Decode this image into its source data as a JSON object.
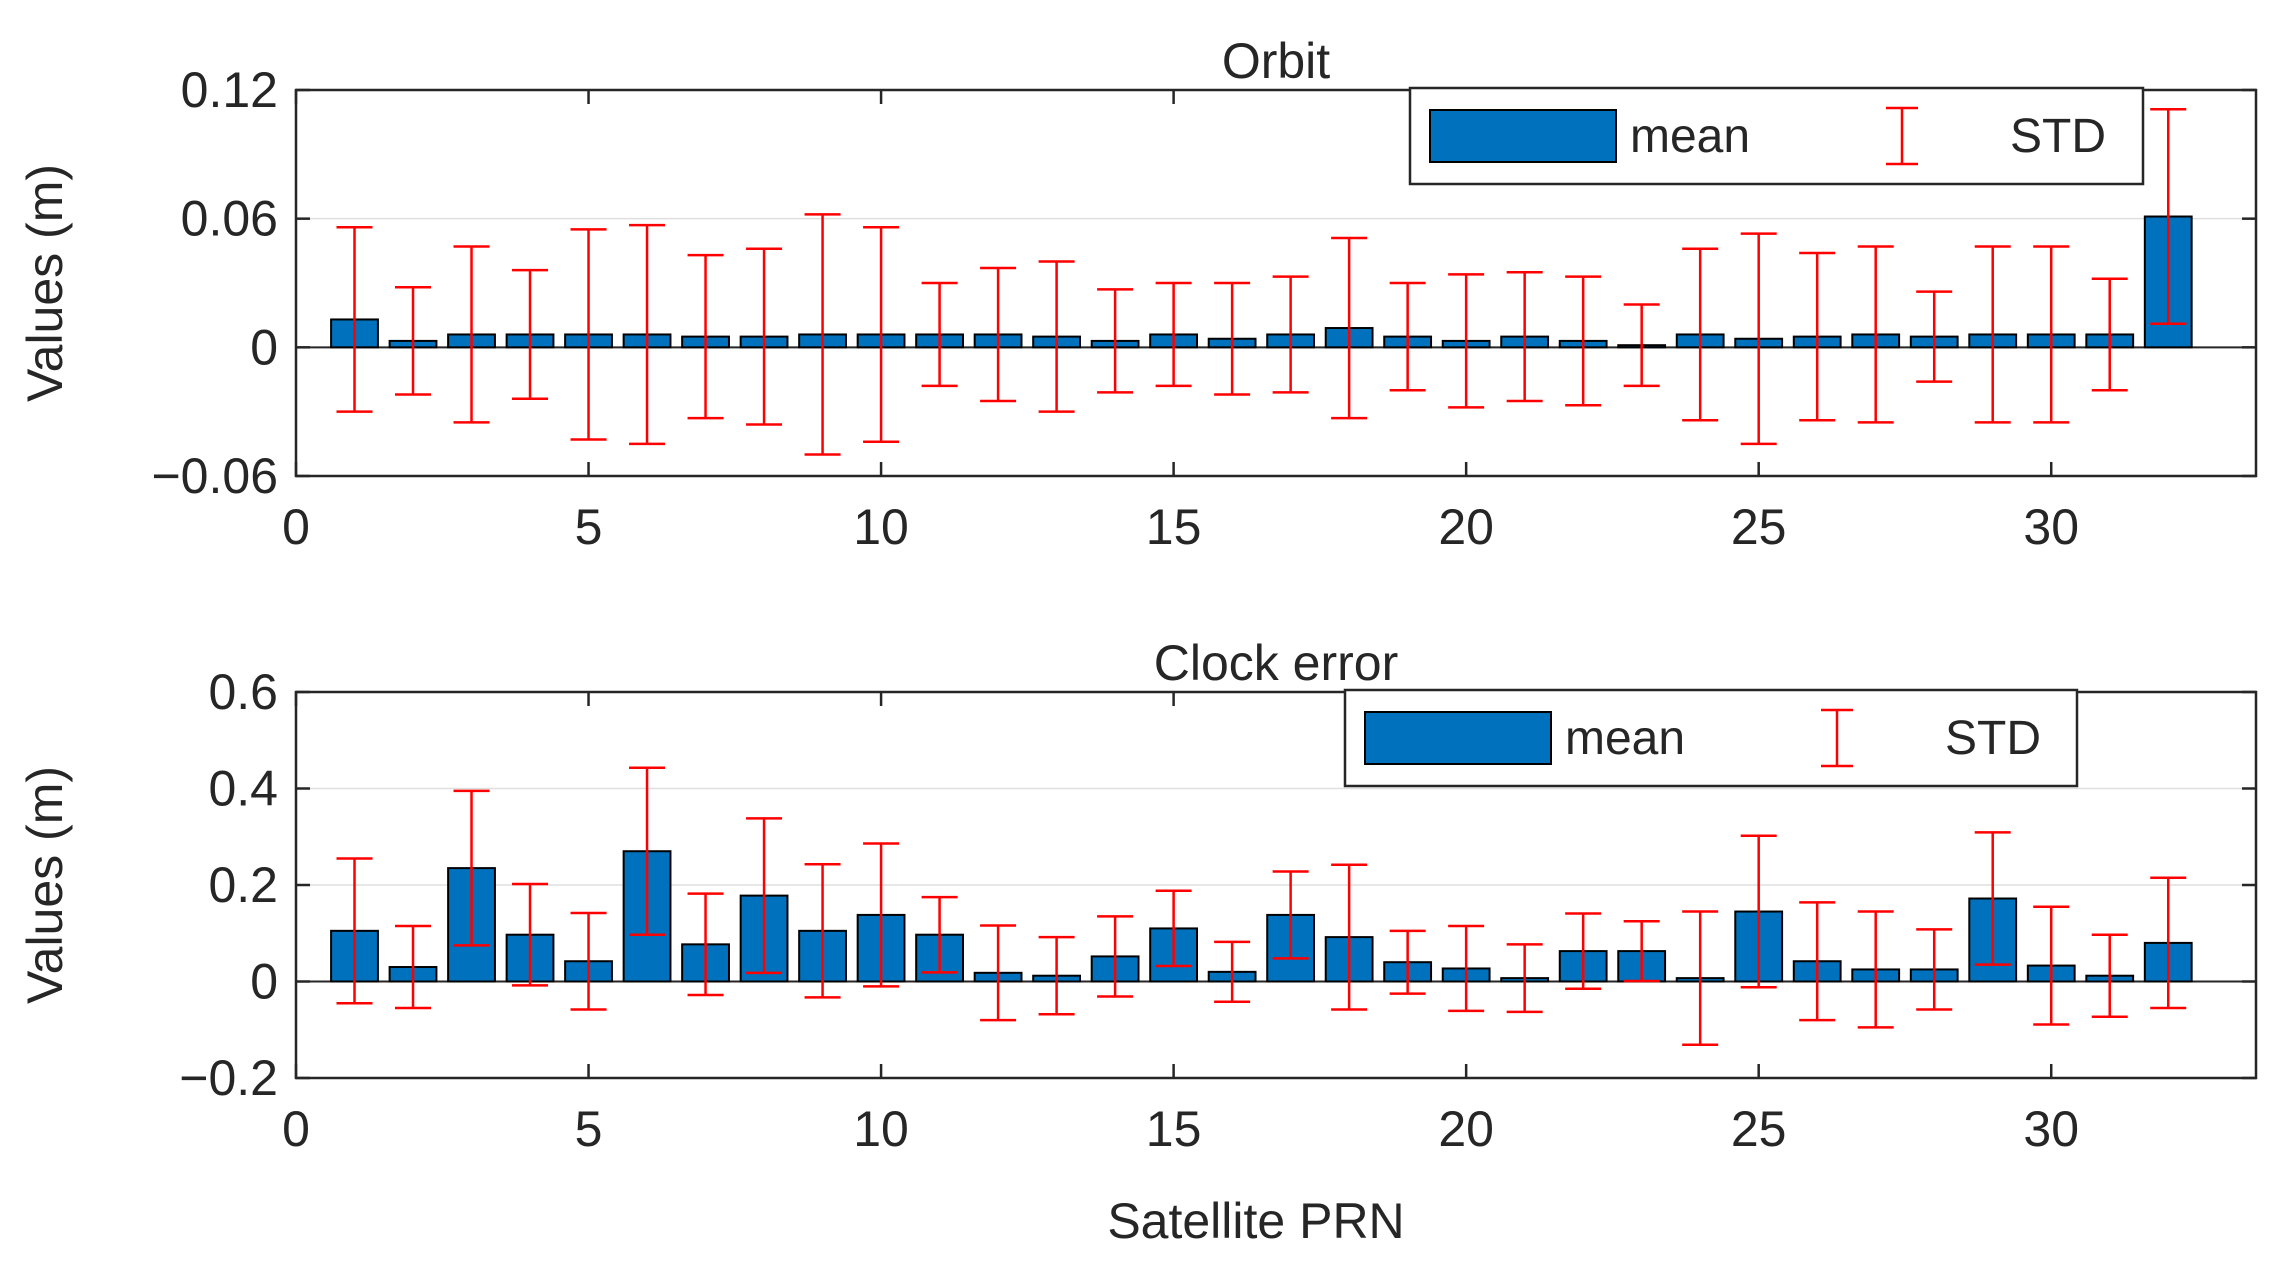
{
  "colors": {
    "bar_fill": "#0072BD",
    "bar_edge": "#000000",
    "errorbar": "#FF0000",
    "axis": "#262626",
    "grid": "#DFDFDF",
    "background": "#FFFFFF"
  },
  "chart_data": [
    {
      "type": "bar",
      "title": "Orbit",
      "xlabel": "",
      "ylabel": "Values (m)",
      "xlim": [
        0,
        33.5
      ],
      "ylim": [
        -0.06,
        0.12
      ],
      "xticks": [
        0,
        5,
        10,
        15,
        20,
        25,
        30
      ],
      "xtick_labels": [
        "0",
        "5",
        "10",
        "15",
        "20",
        "25",
        "30"
      ],
      "yticks": [
        -0.06,
        0,
        0.06,
        0.12
      ],
      "ytick_labels": [
        "−0.06",
        "0",
        "0.06",
        "0.12"
      ],
      "grid": "y",
      "legend": {
        "location": "top-right",
        "mean_label": "mean",
        "std_label": "STD"
      },
      "x": [
        1,
        2,
        3,
        4,
        5,
        6,
        7,
        8,
        9,
        10,
        11,
        12,
        13,
        14,
        15,
        16,
        17,
        18,
        19,
        20,
        21,
        22,
        23,
        24,
        25,
        26,
        27,
        28,
        29,
        30,
        31,
        32
      ],
      "series": [
        {
          "name": "mean",
          "values": [
            0.013,
            0.003,
            0.006,
            0.006,
            0.006,
            0.006,
            0.005,
            0.005,
            0.006,
            0.006,
            0.006,
            0.006,
            0.005,
            0.003,
            0.006,
            0.004,
            0.006,
            0.009,
            0.005,
            0.003,
            0.005,
            0.003,
            0.001,
            0.006,
            0.004,
            0.005,
            0.006,
            0.005,
            0.006,
            0.006,
            0.006,
            0.061
          ]
        },
        {
          "name": "STD",
          "values": [
            0.043,
            0.025,
            0.041,
            0.03,
            0.049,
            0.051,
            0.038,
            0.041,
            0.056,
            0.05,
            0.024,
            0.031,
            0.035,
            0.024,
            0.024,
            0.026,
            0.027,
            0.042,
            0.025,
            0.031,
            0.03,
            0.03,
            0.019,
            0.04,
            0.049,
            0.039,
            0.041,
            0.021,
            0.041,
            0.041,
            0.026,
            0.05
          ]
        }
      ]
    },
    {
      "type": "bar",
      "title": "Clock error",
      "xlabel": "Satellite PRN",
      "ylabel": "Values (m)",
      "xlim": [
        0,
        33.5
      ],
      "ylim": [
        -0.2,
        0.6
      ],
      "xticks": [
        0,
        5,
        10,
        15,
        20,
        25,
        30
      ],
      "xtick_labels": [
        "0",
        "5",
        "10",
        "15",
        "20",
        "25",
        "30"
      ],
      "yticks": [
        -0.2,
        0,
        0.2,
        0.4,
        0.6
      ],
      "ytick_labels": [
        "−0.2",
        "0",
        "0.2",
        "0.4",
        "0.6"
      ],
      "grid": "y",
      "legend": {
        "location": "top-right",
        "mean_label": "mean",
        "std_label": "STD"
      },
      "x": [
        1,
        2,
        3,
        4,
        5,
        6,
        7,
        8,
        9,
        10,
        11,
        12,
        13,
        14,
        15,
        16,
        17,
        18,
        19,
        20,
        21,
        22,
        23,
        24,
        25,
        26,
        27,
        28,
        29,
        30,
        31,
        32
      ],
      "series": [
        {
          "name": "mean",
          "values": [
            0.105,
            0.03,
            0.235,
            0.097,
            0.042,
            0.27,
            0.077,
            0.178,
            0.105,
            0.138,
            0.097,
            0.018,
            0.012,
            0.052,
            0.11,
            0.02,
            0.138,
            0.092,
            0.04,
            0.027,
            0.007,
            0.063,
            0.063,
            0.007,
            0.145,
            0.042,
            0.025,
            0.025,
            0.172,
            0.033,
            0.012,
            0.08
          ]
        },
        {
          "name": "STD",
          "values": [
            0.15,
            0.085,
            0.16,
            0.105,
            0.1,
            0.173,
            0.105,
            0.16,
            0.138,
            0.148,
            0.078,
            0.098,
            0.08,
            0.083,
            0.078,
            0.062,
            0.09,
            0.15,
            0.065,
            0.088,
            0.07,
            0.078,
            0.062,
            0.138,
            0.157,
            0.122,
            0.12,
            0.083,
            0.137,
            0.122,
            0.085,
            0.135
          ]
        }
      ]
    }
  ]
}
